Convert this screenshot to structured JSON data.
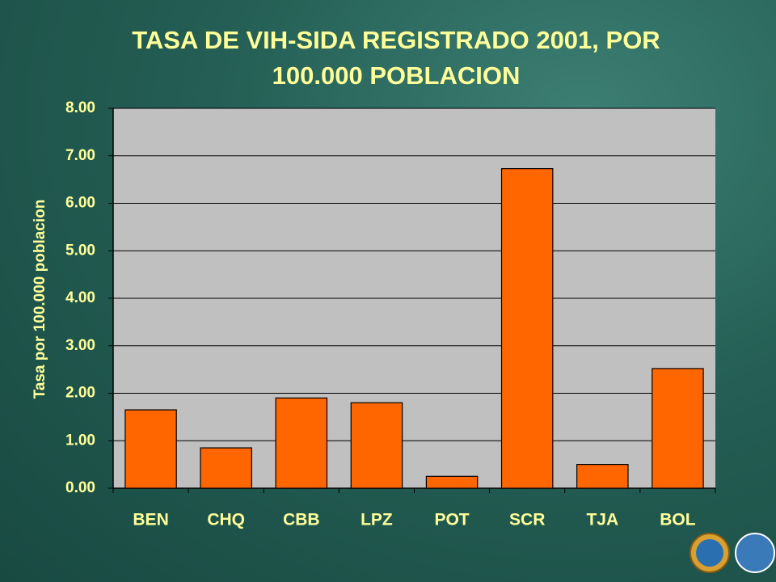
{
  "chart_data": {
    "type": "bar",
    "title": "TASA DE VIH-SIDA REGISTRADO 2001, POR 100.000 POBLACION",
    "y_label": "Tasa por 100.000 poblacion",
    "categories": [
      "BEN",
      "CHQ",
      "CBB",
      "LPZ",
      "POT",
      "SCR",
      "TJA",
      "BOL"
    ],
    "values": [
      1.65,
      0.85,
      1.9,
      1.8,
      0.25,
      6.73,
      0.5,
      2.52
    ],
    "color": "#ff6600",
    "ylim": [
      0,
      8
    ],
    "yticks": [
      {
        "value": 0,
        "label": "0.00"
      },
      {
        "value": 1,
        "label": "1.00"
      },
      {
        "value": 2,
        "label": "2.00"
      },
      {
        "value": 3,
        "label": "3.00"
      },
      {
        "value": 4,
        "label": "4.00"
      },
      {
        "value": 5,
        "label": "5.00"
      },
      {
        "value": 6,
        "label": "6.00"
      },
      {
        "value": 7,
        "label": "7.00"
      },
      {
        "value": 8,
        "label": "8.00"
      }
    ],
    "grid": true
  }
}
